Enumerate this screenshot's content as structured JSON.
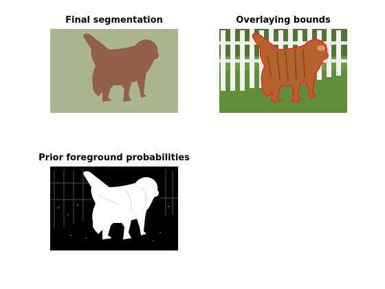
{
  "figure": {
    "panels": [
      {
        "id": "final",
        "title": "Final segmentation"
      },
      {
        "id": "overlay",
        "title": "Overlaying bounds"
      },
      {
        "id": "prior",
        "title": "Prior foreground probabilities"
      }
    ]
  },
  "colors": {
    "segmentation_background": "#a9b68f",
    "segmentation_foreground": "#925f48",
    "boundary_line": "#ff2020",
    "grass": "#5f8d3a",
    "fence": "#f2f2ee",
    "dog_fur": "#b3642c",
    "probability_high": "#ffffff",
    "probability_low": "#000000"
  }
}
